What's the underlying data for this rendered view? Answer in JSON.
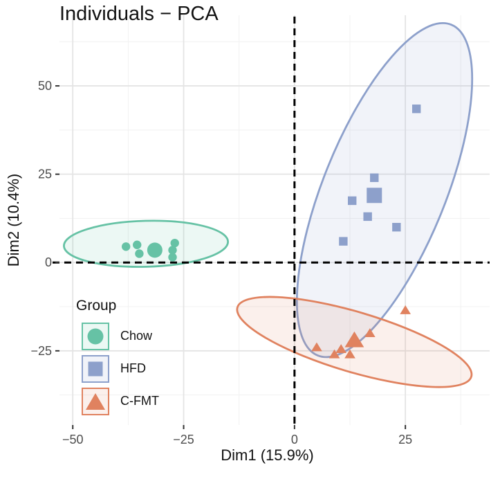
{
  "chart_data": {
    "type": "scatter",
    "title": "Individuals − PCA",
    "xlabel": "Dim1 (15.9%)",
    "ylabel": "Dim2 (10.4%)",
    "xlim": [
      -53,
      44
    ],
    "ylim": [
      -46,
      70
    ],
    "xticks": [
      -50,
      -25,
      0,
      25
    ],
    "xtick_labels": [
      "−50",
      "−25",
      "0",
      "25"
    ],
    "yticks": [
      -25,
      0,
      25,
      50
    ],
    "ytick_labels": [
      "−25",
      "0",
      "25",
      "50"
    ],
    "legend_title": "Group",
    "legend_position": "bottom-left",
    "series": [
      {
        "name": "Chow",
        "shape": "circle",
        "color": "#66c2a5",
        "points": [
          [
            -38,
            4.5
          ],
          [
            -35.5,
            5
          ],
          [
            -35,
            2.5
          ],
          [
            -27,
            5.5
          ],
          [
            -27.5,
            3.5
          ],
          [
            -27.5,
            1.5
          ]
        ],
        "centroid": [
          -31.5,
          3.5
        ],
        "ellipse": {
          "cx": -33.5,
          "cy": 5.3,
          "rx": 18.5,
          "ry": 6.5,
          "angle": -1.5
        }
      },
      {
        "name": "HFD",
        "shape": "square",
        "color": "#8da0cb",
        "points": [
          [
            27.5,
            43.5
          ],
          [
            18,
            24
          ],
          [
            13,
            17.5
          ],
          [
            16.5,
            13
          ],
          [
            23,
            10
          ],
          [
            11,
            6
          ]
        ],
        "centroid": [
          18,
          19
        ],
        "ellipse": {
          "cx": 20.3,
          "cy": 20.5,
          "rx": 13.8,
          "ry": 50.5,
          "angle": 22
        }
      },
      {
        "name": "C-FMT",
        "shape": "triangle",
        "color": "#e0825f",
        "points": [
          [
            25,
            -13.5
          ],
          [
            17,
            -20
          ],
          [
            5,
            -24
          ],
          [
            10.5,
            -24.5
          ],
          [
            9,
            -26
          ],
          [
            12.5,
            -26
          ]
        ],
        "centroid": [
          13.5,
          -22
        ],
        "ellipse": {
          "cx": 13.5,
          "cy": -22.5,
          "rx": 27.5,
          "ry": 8.5,
          "angle": 16.5
        }
      }
    ]
  }
}
